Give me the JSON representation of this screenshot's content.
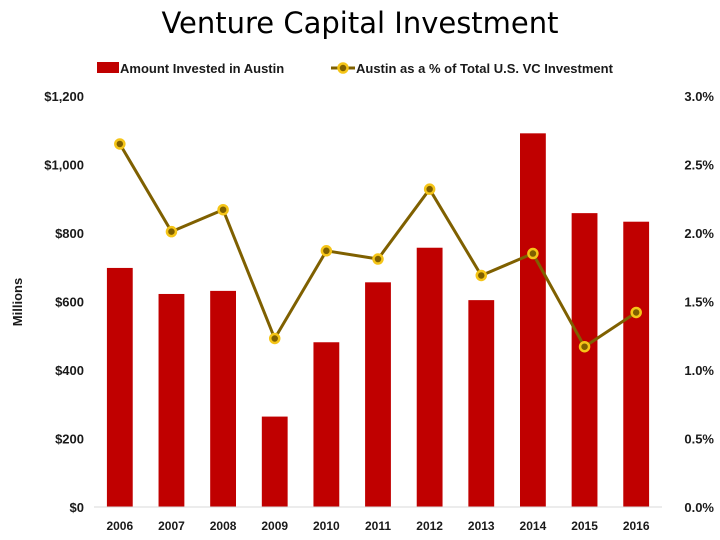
{
  "chart_data": {
    "type": "bar",
    "title": "Venture Capital Investment",
    "ylabel": "Millions",
    "categories": [
      "2006",
      "2007",
      "2008",
      "2009",
      "2010",
      "2011",
      "2012",
      "2013",
      "2014",
      "2015",
      "2016"
    ],
    "ylim": [
      0,
      1200
    ],
    "y2lim": [
      0,
      3.0
    ],
    "yticks": [
      "$0",
      "$200",
      "$400",
      "$600",
      "$800",
      "$1,000",
      "$1,200"
    ],
    "y2ticks": [
      "0.0%",
      "0.5%",
      "1.0%",
      "1.5%",
      "2.0%",
      "2.5%",
      "3.0%"
    ],
    "series": [
      {
        "name": "Amount Invested in Austin",
        "type": "bar",
        "axis": "left",
        "color": "#c00000",
        "values": [
          698,
          622,
          631,
          264,
          481,
          656,
          757,
          604,
          1091,
          858,
          833
        ]
      },
      {
        "name": "Austin as a % of Total U.S. VC Investment",
        "type": "line",
        "axis": "right",
        "color": "#7f6000",
        "marker_color": "#f5c518",
        "values": [
          2.65,
          2.01,
          2.17,
          1.23,
          1.87,
          1.81,
          2.32,
          1.69,
          1.85,
          1.17,
          1.42
        ]
      }
    ],
    "grid": false,
    "legend": "top"
  }
}
